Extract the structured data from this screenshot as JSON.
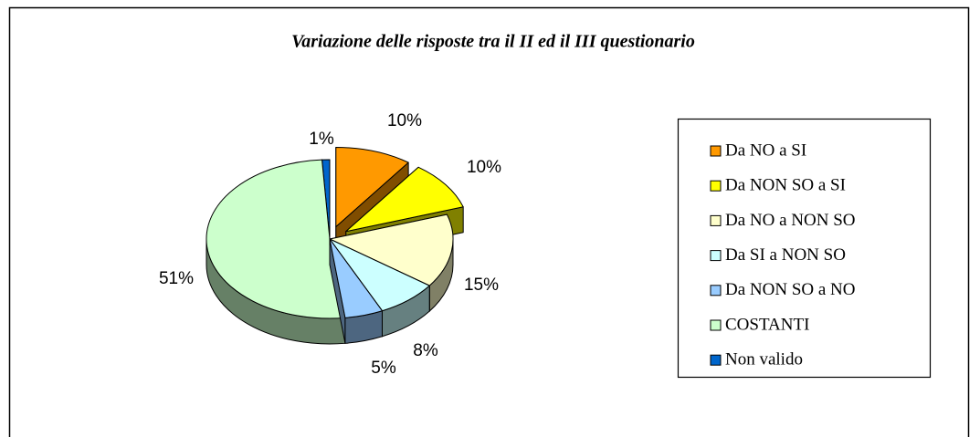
{
  "chart_data": {
    "type": "pie3d",
    "title": "Variazione delle risposte tra il II ed il III questionario",
    "categories": [
      "Da NO a SI",
      "Da NON SO a SI",
      "Da NO a NON SO",
      "Da SI a NON SO",
      "Da NON SO a NO",
      "COSTANTI",
      "Non valido"
    ],
    "values": [
      10,
      10,
      15,
      8,
      5,
      51,
      1
    ],
    "value_labels": [
      "10%",
      "10%",
      "15%",
      "8%",
      "5%",
      "51%",
      "1%"
    ],
    "colors": [
      "#ff9900",
      "#ffff00",
      "#ffffcc",
      "#ccffff",
      "#99ccff",
      "#ccffcc",
      "#0066cc"
    ],
    "exploded": [
      true,
      true,
      false,
      false,
      false,
      false,
      false
    ],
    "legend": "right"
  }
}
